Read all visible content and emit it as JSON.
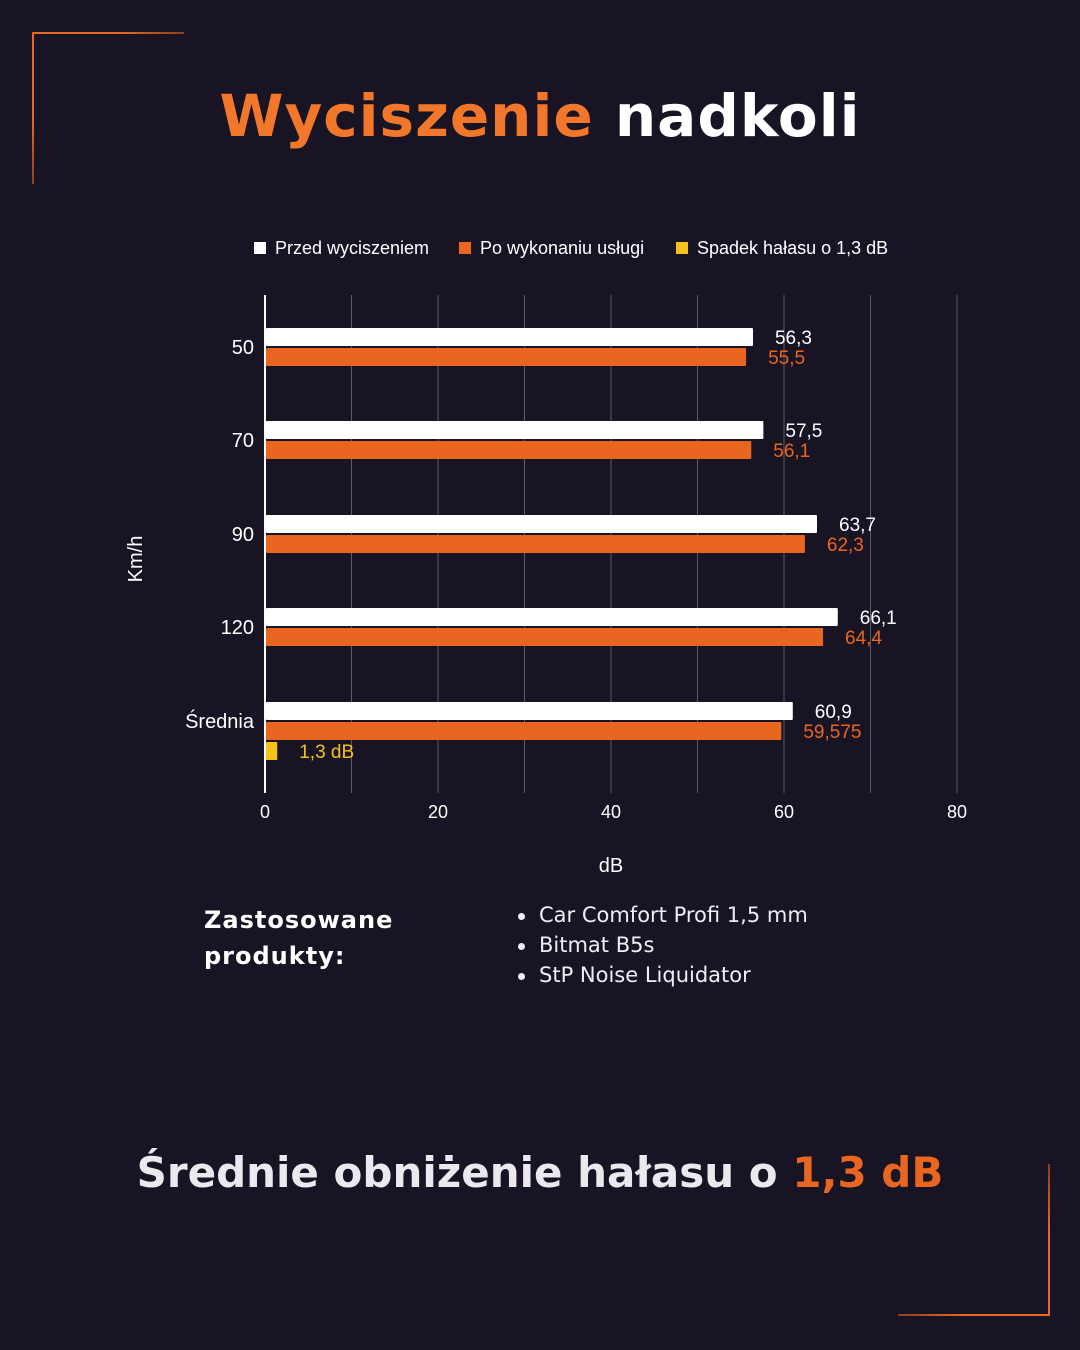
{
  "header": {
    "title_accent": "Wyciszenie",
    "title_rest": "nadkoli"
  },
  "chart_data": {
    "type": "bar",
    "orientation": "horizontal",
    "categories": [
      "50",
      "70",
      "90",
      "120",
      "Średnia"
    ],
    "series": [
      {
        "name": "Przed wyciszeniem",
        "color": "#ffffff",
        "label_color": "#ffffff",
        "values": [
          56.3,
          57.5,
          63.7,
          66.1,
          60.9
        ],
        "labels": [
          "56,3",
          "57,5",
          "63,7",
          "66,1",
          "60,9"
        ]
      },
      {
        "name": "Po wykonaniu usługi",
        "color": "#e8661f",
        "label_color": "#e8661f",
        "values": [
          55.5,
          56.1,
          62.3,
          64.4,
          59.575
        ],
        "labels": [
          "55,5",
          "56,1",
          "62,3",
          "64,4",
          "59,575"
        ]
      },
      {
        "name": "Spadek hałasu o 1,3 dB",
        "color": "#f5c21b",
        "label_color": "#f5c21b",
        "values": [
          null,
          null,
          null,
          null,
          1.3
        ],
        "labels": [
          null,
          null,
          null,
          null,
          "1,3 dB"
        ]
      }
    ],
    "xlim": [
      0,
      80
    ],
    "x_ticks": [
      0,
      20,
      40,
      60,
      80
    ],
    "xlabel": "dB",
    "ylabel": "Km/h",
    "legend_position": "top",
    "grid": true
  },
  "products": {
    "label_line1": "Zastosowane",
    "label_line2": "produkty:",
    "items": [
      "Car Comfort Profi 1,5 mm",
      "Bitmat B5s",
      "StP Noise Liquidator"
    ]
  },
  "summary": {
    "text": "Średnie obniżenie hałasu o",
    "highlight": "1,3 dB"
  }
}
